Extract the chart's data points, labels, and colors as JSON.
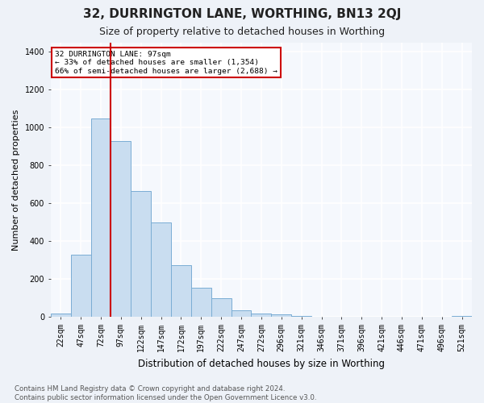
{
  "title": "32, DURRINGTON LANE, WORTHING, BN13 2QJ",
  "subtitle": "Size of property relative to detached houses in Worthing",
  "xlabel": "Distribution of detached houses by size in Worthing",
  "ylabel": "Number of detached properties",
  "footnote": "Contains HM Land Registry data © Crown copyright and database right 2024.\nContains public sector information licensed under the Open Government Licence v3.0.",
  "bins": [
    "22sqm",
    "47sqm",
    "72sqm",
    "97sqm",
    "122sqm",
    "147sqm",
    "172sqm",
    "197sqm",
    "222sqm",
    "247sqm",
    "272sqm",
    "296sqm",
    "321sqm",
    "346sqm",
    "371sqm",
    "396sqm",
    "421sqm",
    "446sqm",
    "471sqm",
    "496sqm",
    "521sqm"
  ],
  "values": [
    20,
    330,
    1050,
    930,
    665,
    500,
    275,
    155,
    100,
    35,
    20,
    15,
    5,
    2,
    1,
    1,
    1,
    1,
    1,
    1,
    5
  ],
  "bar_color": "#c9ddf0",
  "bar_edge_color": "#7aadd4",
  "annotation_text": "32 DURRINGTON LANE: 97sqm\n← 33% of detached houses are smaller (1,354)\n66% of semi-detached houses are larger (2,688) →",
  "annotation_box_color": "white",
  "annotation_box_edge_color": "#cc0000",
  "red_line_color": "#cc0000",
  "ylim": [
    0,
    1450
  ],
  "yticks": [
    0,
    200,
    400,
    600,
    800,
    1000,
    1200,
    1400
  ],
  "bg_color": "#eef2f8",
  "plot_bg_color": "#f5f8fd",
  "grid_color": "white",
  "title_fontsize": 11,
  "subtitle_fontsize": 9,
  "xlabel_fontsize": 8.5,
  "ylabel_fontsize": 8,
  "tick_fontsize": 7,
  "footnote_fontsize": 6.2
}
